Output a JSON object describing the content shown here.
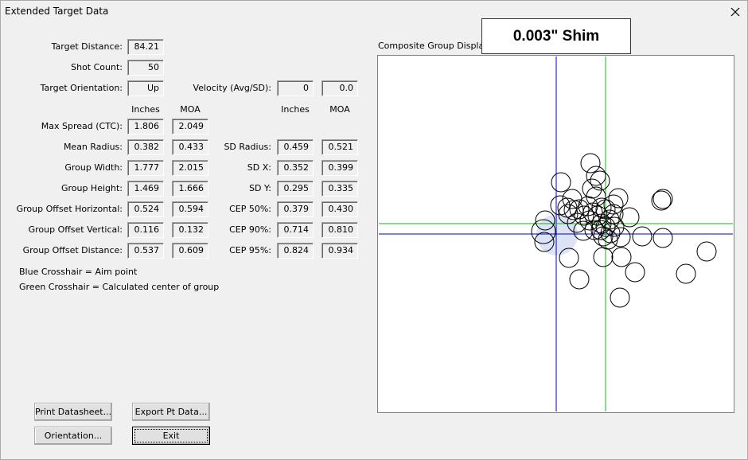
{
  "window": {
    "title": "Extended Target Data"
  },
  "top_fields": [
    {
      "label": "Target Distance:",
      "value": "84.21"
    },
    {
      "label": "Shot Count:",
      "value": "50"
    },
    {
      "label": "Target Orientation:",
      "value": "Up"
    }
  ],
  "velocity": {
    "label": "Velocity (Avg/SD):",
    "values": [
      "0",
      "0.0"
    ]
  },
  "left_headers": [
    "Inches",
    "MOA"
  ],
  "right_headers": [
    "Inches",
    "MOA"
  ],
  "left_rows": [
    {
      "label": "Max Spread (CTC):",
      "inches": "1.806",
      "moa": "2.049"
    },
    {
      "label": "Mean Radius:",
      "inches": "0.382",
      "moa": "0.433"
    },
    {
      "label": "Group Width:",
      "inches": "1.777",
      "moa": "2.015"
    },
    {
      "label": "Group Height:",
      "inches": "1.469",
      "moa": "1.666"
    },
    {
      "label": "Group Offset Horizontal:",
      "inches": "0.524",
      "moa": "0.594"
    },
    {
      "label": "Group Offset Vertical:",
      "inches": "0.116",
      "moa": "0.132"
    },
    {
      "label": "Group Offset Distance:",
      "inches": "0.537",
      "moa": "0.609"
    }
  ],
  "right_rows": [
    {
      "label": "SD Radius:",
      "inches": "0.459",
      "moa": "0.521"
    },
    {
      "label": "SD X:",
      "inches": "0.352",
      "moa": "0.399"
    },
    {
      "label": "SD Y:",
      "inches": "0.295",
      "moa": "0.335"
    },
    {
      "label": "CEP 50%:",
      "inches": "0.379",
      "moa": "0.430"
    },
    {
      "label": "CEP 90%:",
      "inches": "0.714",
      "moa": "0.810"
    },
    {
      "label": "CEP 95%:",
      "inches": "0.824",
      "moa": "0.934"
    }
  ],
  "notes": [
    "Blue Crosshair = Aim point",
    "Green Crosshair = Calculated center of group"
  ],
  "display": {
    "label": "Composite Group Display",
    "banner": "0.003\" Shim"
  },
  "buttons": [
    "Print Datasheet...",
    "Export Pt Data...",
    "Orientation...",
    "Exit"
  ]
}
